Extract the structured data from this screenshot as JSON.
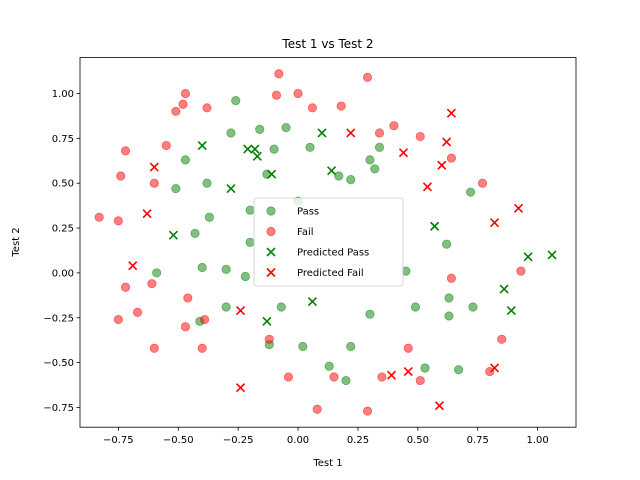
{
  "chart_data": {
    "type": "scatter",
    "title": "Test 1 vs Test 2",
    "xlabel": "Test 1",
    "ylabel": "Test 2",
    "xlim": [
      -0.91,
      1.16
    ],
    "ylim": [
      -0.86,
      1.2
    ],
    "xticks": [
      -0.75,
      -0.5,
      -0.25,
      0.0,
      0.25,
      0.5,
      0.75,
      1.0
    ],
    "yticks": [
      -0.75,
      -0.5,
      -0.25,
      0.0,
      0.25,
      0.5,
      0.75,
      1.0
    ],
    "xtick_labels": [
      "−0.75",
      "−0.50",
      "−0.25",
      "0.00",
      "0.25",
      "0.50",
      "0.75",
      "1.00"
    ],
    "ytick_labels": [
      "−0.75",
      "−0.50",
      "−0.25",
      "0.00",
      "0.25",
      "0.50",
      "0.75",
      "1.00"
    ],
    "grid": false,
    "legend_position": "center",
    "colors": {
      "pass": "#008000",
      "fail": "#ff0000",
      "pred_pass": "#008000",
      "pred_fail": "#ff0000"
    },
    "series": [
      {
        "name": "Pass",
        "marker": "circle",
        "points": [
          [
            -0.26,
            0.96
          ],
          [
            -0.28,
            0.78
          ],
          [
            -0.16,
            0.8
          ],
          [
            -0.05,
            0.81
          ],
          [
            -0.1,
            0.69
          ],
          [
            -0.47,
            0.63
          ],
          [
            -0.51,
            0.47
          ],
          [
            -0.38,
            0.5
          ],
          [
            -0.37,
            0.31
          ],
          [
            -0.43,
            0.22
          ],
          [
            -0.59,
            0.0
          ],
          [
            -0.4,
            0.03
          ],
          [
            -0.3,
            0.02
          ],
          [
            -0.22,
            -0.02
          ],
          [
            -0.41,
            -0.27
          ],
          [
            -0.3,
            -0.19
          ],
          [
            -0.12,
            -0.4
          ],
          [
            -0.07,
            -0.19
          ],
          [
            0.02,
            -0.41
          ],
          [
            -0.13,
            0.55
          ],
          [
            0.05,
            0.7
          ],
          [
            0.17,
            0.54
          ],
          [
            0.22,
            0.52
          ],
          [
            0.32,
            0.58
          ],
          [
            0.34,
            0.7
          ],
          [
            0.3,
            0.63
          ],
          [
            -0.2,
            0.35
          ],
          [
            -0.2,
            0.17
          ],
          [
            0.0,
            0.4
          ],
          [
            0.45,
            0.01
          ],
          [
            0.49,
            -0.19
          ],
          [
            0.62,
            0.16
          ],
          [
            0.63,
            -0.14
          ],
          [
            0.63,
            -0.24
          ],
          [
            0.73,
            -0.19
          ],
          [
            0.72,
            0.45
          ],
          [
            0.53,
            -0.53
          ],
          [
            0.67,
            -0.54
          ],
          [
            0.3,
            -0.23
          ],
          [
            0.22,
            -0.41
          ],
          [
            0.2,
            -0.6
          ],
          [
            0.13,
            -0.52
          ]
        ]
      },
      {
        "name": "Fail",
        "marker": "circle",
        "points": [
          [
            -0.47,
            1.0
          ],
          [
            -0.51,
            0.9
          ],
          [
            -0.48,
            0.94
          ],
          [
            -0.38,
            0.92
          ],
          [
            -0.55,
            0.71
          ],
          [
            -0.72,
            0.68
          ],
          [
            -0.74,
            0.54
          ],
          [
            -0.6,
            0.5
          ],
          [
            -0.83,
            0.31
          ],
          [
            -0.75,
            0.29
          ],
          [
            -0.72,
            -0.08
          ],
          [
            -0.75,
            -0.26
          ],
          [
            -0.67,
            -0.22
          ],
          [
            -0.61,
            -0.06
          ],
          [
            -0.6,
            -0.42
          ],
          [
            -0.47,
            -0.3
          ],
          [
            -0.46,
            -0.14
          ],
          [
            -0.39,
            -0.26
          ],
          [
            -0.4,
            -0.42
          ],
          [
            -0.12,
            -0.37
          ],
          [
            -0.04,
            -0.58
          ],
          [
            0.08,
            -0.76
          ],
          [
            0.15,
            -0.58
          ],
          [
            0.29,
            -0.77
          ],
          [
            0.35,
            -0.58
          ],
          [
            0.46,
            -0.42
          ],
          [
            0.51,
            -0.6
          ],
          [
            -0.09,
            0.99
          ],
          [
            -0.08,
            1.11
          ],
          [
            0.0,
            1.0
          ],
          [
            0.06,
            0.92
          ],
          [
            0.18,
            0.93
          ],
          [
            0.29,
            1.09
          ],
          [
            0.4,
            0.82
          ],
          [
            0.51,
            0.76
          ],
          [
            0.64,
            0.64
          ],
          [
            0.77,
            0.5
          ],
          [
            0.64,
            -0.03
          ],
          [
            0.85,
            -0.37
          ],
          [
            0.93,
            0.01
          ],
          [
            0.8,
            -0.55
          ],
          [
            0.34,
            0.78
          ]
        ]
      },
      {
        "name": "Predicted Pass",
        "marker": "x",
        "points": [
          [
            -0.4,
            0.71
          ],
          [
            -0.21,
            0.69
          ],
          [
            -0.18,
            0.69
          ],
          [
            -0.17,
            0.65
          ],
          [
            -0.11,
            0.55
          ],
          [
            -0.28,
            0.47
          ],
          [
            -0.52,
            0.21
          ],
          [
            0.1,
            0.78
          ],
          [
            0.14,
            0.57
          ],
          [
            0.57,
            0.26
          ],
          [
            0.86,
            -0.09
          ],
          [
            0.96,
            0.09
          ],
          [
            1.06,
            0.1
          ],
          [
            0.89,
            -0.21
          ],
          [
            0.06,
            -0.16
          ],
          [
            -0.13,
            -0.27
          ]
        ]
      },
      {
        "name": "Predicted Fail",
        "marker": "x",
        "points": [
          [
            -0.6,
            0.59
          ],
          [
            -0.63,
            0.33
          ],
          [
            -0.69,
            0.04
          ],
          [
            0.22,
            0.78
          ],
          [
            0.44,
            0.67
          ],
          [
            0.64,
            0.89
          ],
          [
            0.62,
            0.73
          ],
          [
            0.6,
            0.6
          ],
          [
            0.54,
            0.48
          ],
          [
            0.82,
            0.28
          ],
          [
            0.92,
            0.36
          ],
          [
            0.82,
            -0.53
          ],
          [
            0.39,
            -0.57
          ],
          [
            0.46,
            -0.55
          ],
          [
            0.59,
            -0.74
          ],
          [
            -0.24,
            -0.21
          ],
          [
            -0.24,
            -0.64
          ]
        ]
      }
    ]
  }
}
